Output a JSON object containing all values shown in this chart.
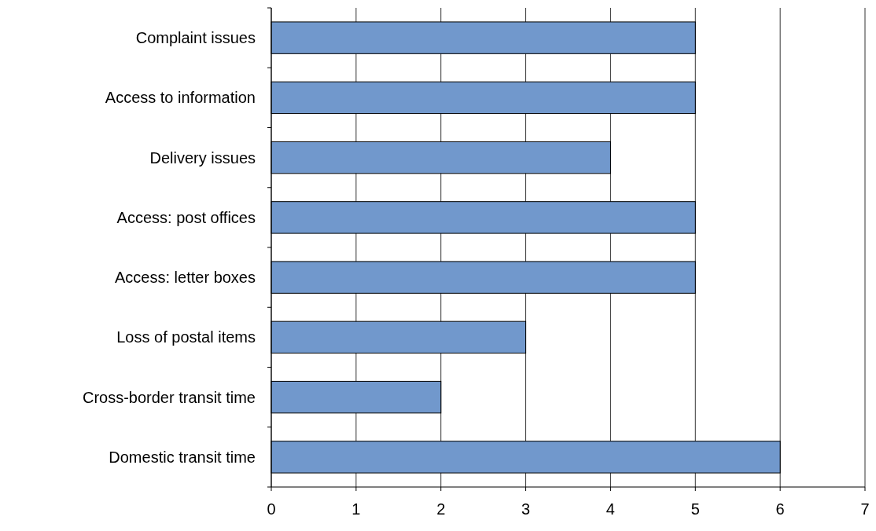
{
  "chart_data": {
    "type": "bar",
    "orientation": "horizontal",
    "categories": [
      "Complaint issues",
      "Access to information",
      "Delivery issues",
      "Access: post offices",
      "Access: letter boxes",
      "Loss of postal items",
      "Cross-border transit time",
      "Domestic transit time"
    ],
    "values": [
      5,
      5,
      4,
      5,
      5,
      3,
      2,
      6
    ],
    "color": "#7198cc",
    "xlim": [
      0,
      7
    ],
    "xticks": [
      0,
      1,
      2,
      3,
      4,
      5,
      6,
      7
    ],
    "grid": "x"
  }
}
